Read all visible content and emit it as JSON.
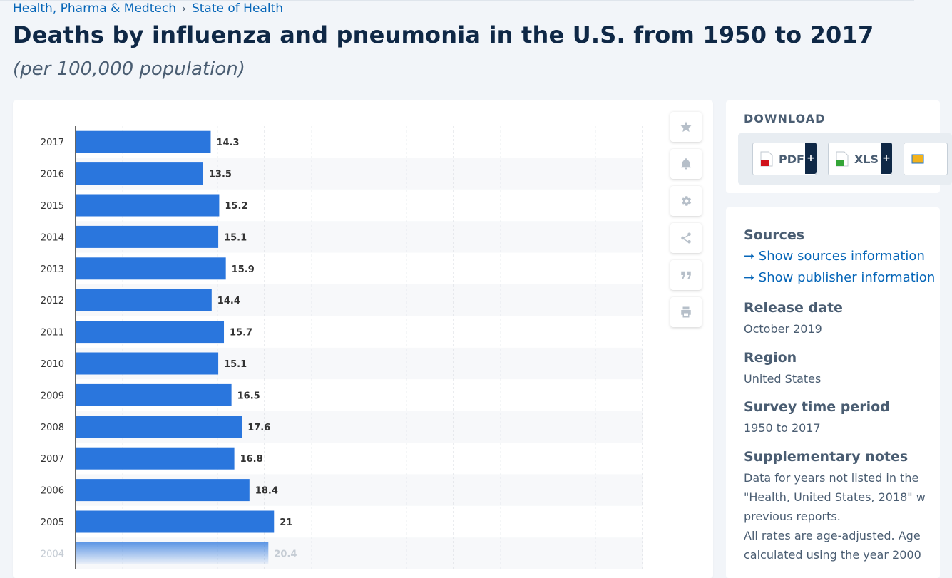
{
  "breadcrumb": {
    "category": "Health, Pharma & Medtech",
    "separator": "›",
    "topic": "State of Health"
  },
  "title": "Deaths by influenza and pneumonia in the U.S. from 1950 to 2017",
  "subtitle": "(per 100,000 population)",
  "toolbar": {
    "icons": [
      "star-icon",
      "bell-icon",
      "gear-icon",
      "share-icon",
      "quote-icon",
      "print-icon"
    ]
  },
  "download": {
    "heading": "DOWNLOAD",
    "pdf_label": "PDF",
    "xls_label": "XLS",
    "plus": "+"
  },
  "info": {
    "sources_heading": "Sources",
    "sources_link": "➞ Show sources information",
    "publisher_link": "➞ Show publisher information",
    "release_heading": "Release date",
    "release_value": "October 2019",
    "region_heading": "Region",
    "region_value": "United States",
    "period_heading": "Survey time period",
    "period_value": "1950 to 2017",
    "notes_heading": "Supplementary notes",
    "notes_lines": [
      "Data for years not listed in the",
      "\"Health, United States, 2018\" w",
      "previous reports.",
      "All rates are age-adjusted. Age",
      "calculated using the year 2000"
    ]
  },
  "colors": {
    "bar": "#2a76dd",
    "accent": "#0666b8",
    "text": "#0f2846"
  },
  "chart_data": {
    "type": "bar",
    "orientation": "horizontal",
    "categories": [
      "2017",
      "2016",
      "2015",
      "2014",
      "2013",
      "2012",
      "2011",
      "2010",
      "2009",
      "2008",
      "2007",
      "2006",
      "2005",
      "2004"
    ],
    "values": [
      14.3,
      13.5,
      15.2,
      15.1,
      15.9,
      14.4,
      15.7,
      15.1,
      16.5,
      17.6,
      16.8,
      18.4,
      21,
      20.4
    ],
    "value_labels": [
      "14.3",
      "13.5",
      "15.2",
      "15.1",
      "15.9",
      "14.4",
      "15.7",
      "15.1",
      "16.5",
      "17.6",
      "16.8",
      "18.4",
      "21",
      "20.4"
    ],
    "xlim": [
      0,
      60
    ],
    "grid": true
  }
}
